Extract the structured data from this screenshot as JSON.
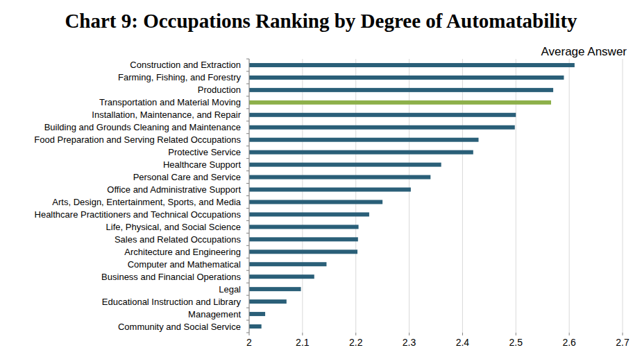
{
  "chart_data": {
    "type": "bar",
    "orientation": "horizontal",
    "title": "Chart 9: Occupations Ranking by Degree of Automatability",
    "subtitle": "Average Answer",
    "categories": [
      "Construction and Extraction",
      "Farming, Fishing, and Forestry",
      "Production",
      "Transportation and Material Moving",
      "Installation, Maintenance, and Repair",
      "Building and Grounds Cleaning and Maintenance",
      "Food Preparation and Serving Related Occupations",
      "Protective Service",
      "Healthcare Support",
      "Personal Care and Service",
      "Office and Administrative Support",
      "Arts, Design, Entertainment, Sports, and Media",
      "Healthcare Practitioners and Technical Occupations",
      "Life, Physical, and Social Science",
      "Sales and Related Occupations",
      "Architecture and Engineering",
      "Computer and Mathematical",
      "Business and Financial Operations",
      "Legal",
      "Educational Instruction and Library",
      "Management",
      "Community and Social Service"
    ],
    "values": [
      2.61,
      2.59,
      2.57,
      2.566,
      2.5,
      2.498,
      2.43,
      2.42,
      2.36,
      2.34,
      2.303,
      2.25,
      2.225,
      2.205,
      2.204,
      2.203,
      2.145,
      2.122,
      2.097,
      2.07,
      2.03,
      2.023
    ],
    "colors": [
      "#2a5f78",
      "#2a5f78",
      "#2a5f78",
      "#8db04a",
      "#2a5f78",
      "#2a5f78",
      "#2a5f78",
      "#2a5f78",
      "#2a5f78",
      "#2a5f78",
      "#2a5f78",
      "#2a5f78",
      "#2a5f78",
      "#2a5f78",
      "#2a5f78",
      "#2a5f78",
      "#2a5f78",
      "#2a5f78",
      "#2a5f78",
      "#2a5f78",
      "#2a5f78",
      "#2a5f78"
    ],
    "xlim": [
      2,
      2.7
    ],
    "xticks": [
      2,
      2.1,
      2.2,
      2.3,
      2.4,
      2.5,
      2.6,
      2.7
    ],
    "grid": true
  }
}
